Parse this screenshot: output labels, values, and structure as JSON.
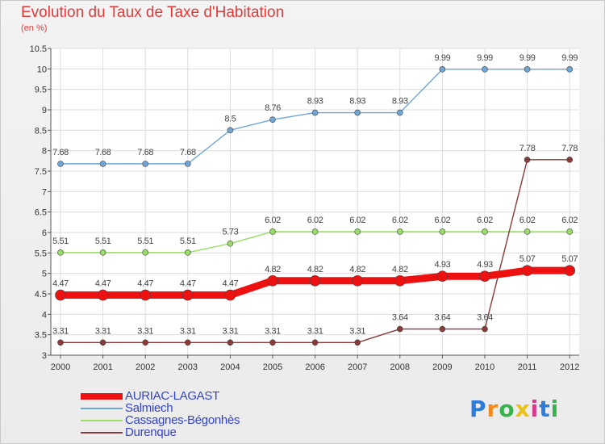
{
  "title": "Evolution du Taux de Taxe d'Habitation",
  "subtitle": "(en %)",
  "logo_text": "Proxiti",
  "chart_data": {
    "type": "line",
    "x": [
      "2000",
      "2001",
      "2002",
      "2003",
      "2004",
      "2005",
      "2006",
      "2007",
      "2008",
      "2009",
      "2010",
      "2011",
      "2012"
    ],
    "ylim": [
      3,
      10.5
    ],
    "yticks": [
      "3",
      "3.5",
      "4",
      "4.5",
      "5",
      "5.5",
      "6",
      "6.5",
      "7",
      "7.5",
      "8",
      "8.5",
      "9",
      "9.5",
      "10",
      "10.5"
    ],
    "grid": true,
    "legend_position": "bottom-left",
    "series": [
      {
        "name": "AURIAC-LAGAST",
        "color": "#ee1111",
        "values": [
          4.47,
          4.47,
          4.47,
          4.47,
          4.47,
          4.82,
          4.82,
          4.82,
          4.82,
          4.93,
          4.93,
          5.07,
          5.07
        ],
        "labels": [
          "4.47",
          "4.47",
          "4.47",
          "4.47",
          "4.47",
          "4.82",
          "4.82",
          "4.82",
          "4.82",
          "4.93",
          "4.93",
          "5.07",
          "5.07"
        ]
      },
      {
        "name": "Salmiech",
        "color": "#6fa6d6",
        "values": [
          7.68,
          7.68,
          7.68,
          7.68,
          8.5,
          8.76,
          8.93,
          8.93,
          8.93,
          9.99,
          9.99,
          9.99,
          9.99
        ],
        "labels": [
          "7.68",
          "7.68",
          "7.68",
          "7.68",
          "8.5",
          "8.76",
          "8.93",
          "8.93",
          "8.93",
          "9.99",
          "9.99",
          "9.99",
          "9.99"
        ]
      },
      {
        "name": "Cassagnes-Bégonhès",
        "color": "#99dd66",
        "values": [
          5.51,
          5.51,
          5.51,
          5.51,
          5.73,
          6.02,
          6.02,
          6.02,
          6.02,
          6.02,
          6.02,
          6.02,
          6.02
        ],
        "labels": [
          "5.51",
          "5.51",
          "5.51",
          "5.51",
          "5.73",
          "6.02",
          "6.02",
          "6.02",
          "6.02",
          "6.02",
          "6.02",
          "6.02",
          "6.02"
        ]
      },
      {
        "name": "Durenque",
        "color": "#8b3a3a",
        "values": [
          3.31,
          3.31,
          3.31,
          3.31,
          3.31,
          3.31,
          3.31,
          3.31,
          3.64,
          3.64,
          3.64,
          7.78,
          7.78
        ],
        "labels": [
          "3.31",
          "3.31",
          "3.31",
          "3.31",
          "3.31",
          "3.31",
          "3.31",
          "3.31",
          "3.64",
          "3.64",
          "3.64",
          "7.78",
          "7.78"
        ]
      }
    ]
  }
}
